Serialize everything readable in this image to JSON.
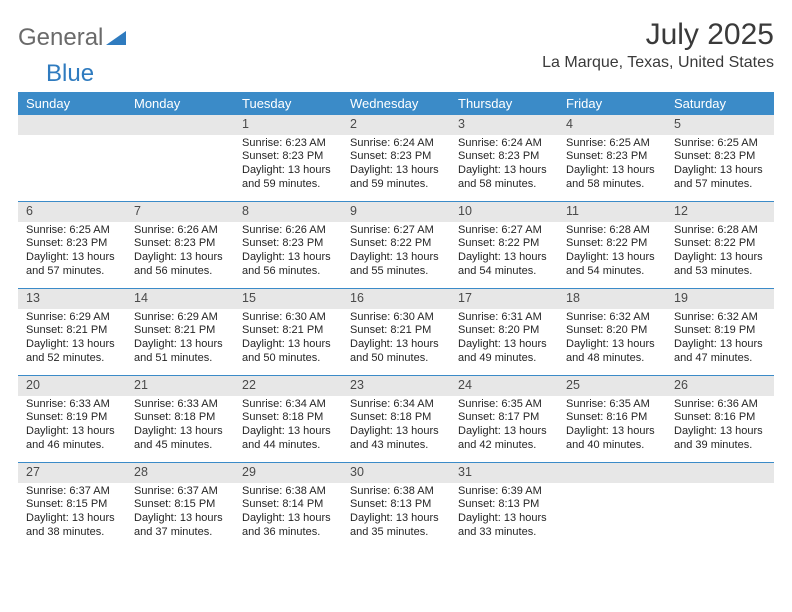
{
  "logo": {
    "text1": "General",
    "text2": "Blue"
  },
  "title": "July 2025",
  "location": "La Marque, Texas, United States",
  "day_names": [
    "Sunday",
    "Monday",
    "Tuesday",
    "Wednesday",
    "Thursday",
    "Friday",
    "Saturday"
  ],
  "colors": {
    "header_bg": "#3b8bc8",
    "header_text": "#ffffff",
    "daynum_bg": "#e7e7e7",
    "divider": "#3b8bc8",
    "logo_gray": "#6a6a6a",
    "logo_blue": "#2f7bbf"
  },
  "weeks": [
    [
      {
        "empty": true
      },
      {
        "empty": true
      },
      {
        "n": "1",
        "sunrise": "Sunrise: 6:23 AM",
        "sunset": "Sunset: 8:23 PM",
        "dl1": "Daylight: 13 hours",
        "dl2": "and 59 minutes."
      },
      {
        "n": "2",
        "sunrise": "Sunrise: 6:24 AM",
        "sunset": "Sunset: 8:23 PM",
        "dl1": "Daylight: 13 hours",
        "dl2": "and 59 minutes."
      },
      {
        "n": "3",
        "sunrise": "Sunrise: 6:24 AM",
        "sunset": "Sunset: 8:23 PM",
        "dl1": "Daylight: 13 hours",
        "dl2": "and 58 minutes."
      },
      {
        "n": "4",
        "sunrise": "Sunrise: 6:25 AM",
        "sunset": "Sunset: 8:23 PM",
        "dl1": "Daylight: 13 hours",
        "dl2": "and 58 minutes."
      },
      {
        "n": "5",
        "sunrise": "Sunrise: 6:25 AM",
        "sunset": "Sunset: 8:23 PM",
        "dl1": "Daylight: 13 hours",
        "dl2": "and 57 minutes."
      }
    ],
    [
      {
        "n": "6",
        "sunrise": "Sunrise: 6:25 AM",
        "sunset": "Sunset: 8:23 PM",
        "dl1": "Daylight: 13 hours",
        "dl2": "and 57 minutes."
      },
      {
        "n": "7",
        "sunrise": "Sunrise: 6:26 AM",
        "sunset": "Sunset: 8:23 PM",
        "dl1": "Daylight: 13 hours",
        "dl2": "and 56 minutes."
      },
      {
        "n": "8",
        "sunrise": "Sunrise: 6:26 AM",
        "sunset": "Sunset: 8:23 PM",
        "dl1": "Daylight: 13 hours",
        "dl2": "and 56 minutes."
      },
      {
        "n": "9",
        "sunrise": "Sunrise: 6:27 AM",
        "sunset": "Sunset: 8:22 PM",
        "dl1": "Daylight: 13 hours",
        "dl2": "and 55 minutes."
      },
      {
        "n": "10",
        "sunrise": "Sunrise: 6:27 AM",
        "sunset": "Sunset: 8:22 PM",
        "dl1": "Daylight: 13 hours",
        "dl2": "and 54 minutes."
      },
      {
        "n": "11",
        "sunrise": "Sunrise: 6:28 AM",
        "sunset": "Sunset: 8:22 PM",
        "dl1": "Daylight: 13 hours",
        "dl2": "and 54 minutes."
      },
      {
        "n": "12",
        "sunrise": "Sunrise: 6:28 AM",
        "sunset": "Sunset: 8:22 PM",
        "dl1": "Daylight: 13 hours",
        "dl2": "and 53 minutes."
      }
    ],
    [
      {
        "n": "13",
        "sunrise": "Sunrise: 6:29 AM",
        "sunset": "Sunset: 8:21 PM",
        "dl1": "Daylight: 13 hours",
        "dl2": "and 52 minutes."
      },
      {
        "n": "14",
        "sunrise": "Sunrise: 6:29 AM",
        "sunset": "Sunset: 8:21 PM",
        "dl1": "Daylight: 13 hours",
        "dl2": "and 51 minutes."
      },
      {
        "n": "15",
        "sunrise": "Sunrise: 6:30 AM",
        "sunset": "Sunset: 8:21 PM",
        "dl1": "Daylight: 13 hours",
        "dl2": "and 50 minutes."
      },
      {
        "n": "16",
        "sunrise": "Sunrise: 6:30 AM",
        "sunset": "Sunset: 8:21 PM",
        "dl1": "Daylight: 13 hours",
        "dl2": "and 50 minutes."
      },
      {
        "n": "17",
        "sunrise": "Sunrise: 6:31 AM",
        "sunset": "Sunset: 8:20 PM",
        "dl1": "Daylight: 13 hours",
        "dl2": "and 49 minutes."
      },
      {
        "n": "18",
        "sunrise": "Sunrise: 6:32 AM",
        "sunset": "Sunset: 8:20 PM",
        "dl1": "Daylight: 13 hours",
        "dl2": "and 48 minutes."
      },
      {
        "n": "19",
        "sunrise": "Sunrise: 6:32 AM",
        "sunset": "Sunset: 8:19 PM",
        "dl1": "Daylight: 13 hours",
        "dl2": "and 47 minutes."
      }
    ],
    [
      {
        "n": "20",
        "sunrise": "Sunrise: 6:33 AM",
        "sunset": "Sunset: 8:19 PM",
        "dl1": "Daylight: 13 hours",
        "dl2": "and 46 minutes."
      },
      {
        "n": "21",
        "sunrise": "Sunrise: 6:33 AM",
        "sunset": "Sunset: 8:18 PM",
        "dl1": "Daylight: 13 hours",
        "dl2": "and 45 minutes."
      },
      {
        "n": "22",
        "sunrise": "Sunrise: 6:34 AM",
        "sunset": "Sunset: 8:18 PM",
        "dl1": "Daylight: 13 hours",
        "dl2": "and 44 minutes."
      },
      {
        "n": "23",
        "sunrise": "Sunrise: 6:34 AM",
        "sunset": "Sunset: 8:18 PM",
        "dl1": "Daylight: 13 hours",
        "dl2": "and 43 minutes."
      },
      {
        "n": "24",
        "sunrise": "Sunrise: 6:35 AM",
        "sunset": "Sunset: 8:17 PM",
        "dl1": "Daylight: 13 hours",
        "dl2": "and 42 minutes."
      },
      {
        "n": "25",
        "sunrise": "Sunrise: 6:35 AM",
        "sunset": "Sunset: 8:16 PM",
        "dl1": "Daylight: 13 hours",
        "dl2": "and 40 minutes."
      },
      {
        "n": "26",
        "sunrise": "Sunrise: 6:36 AM",
        "sunset": "Sunset: 8:16 PM",
        "dl1": "Daylight: 13 hours",
        "dl2": "and 39 minutes."
      }
    ],
    [
      {
        "n": "27",
        "sunrise": "Sunrise: 6:37 AM",
        "sunset": "Sunset: 8:15 PM",
        "dl1": "Daylight: 13 hours",
        "dl2": "and 38 minutes."
      },
      {
        "n": "28",
        "sunrise": "Sunrise: 6:37 AM",
        "sunset": "Sunset: 8:15 PM",
        "dl1": "Daylight: 13 hours",
        "dl2": "and 37 minutes."
      },
      {
        "n": "29",
        "sunrise": "Sunrise: 6:38 AM",
        "sunset": "Sunset: 8:14 PM",
        "dl1": "Daylight: 13 hours",
        "dl2": "and 36 minutes."
      },
      {
        "n": "30",
        "sunrise": "Sunrise: 6:38 AM",
        "sunset": "Sunset: 8:13 PM",
        "dl1": "Daylight: 13 hours",
        "dl2": "and 35 minutes."
      },
      {
        "n": "31",
        "sunrise": "Sunrise: 6:39 AM",
        "sunset": "Sunset: 8:13 PM",
        "dl1": "Daylight: 13 hours",
        "dl2": "and 33 minutes."
      },
      {
        "empty": true
      },
      {
        "empty": true
      }
    ]
  ]
}
